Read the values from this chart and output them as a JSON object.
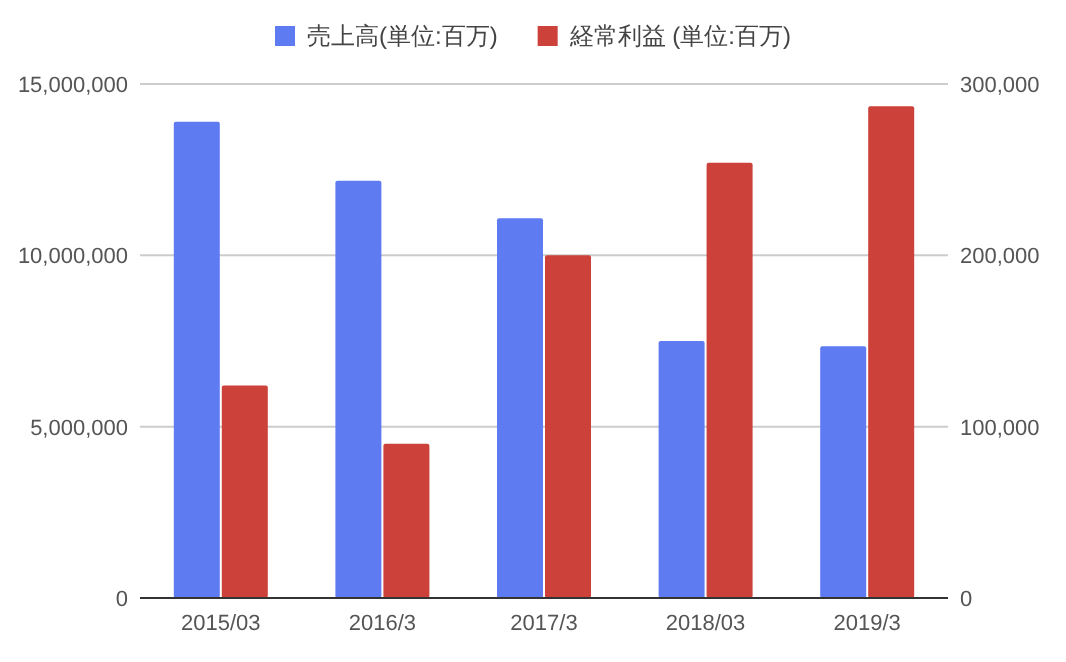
{
  "chart_data": {
    "type": "bar",
    "categories": [
      "2015/03",
      "2016/3",
      "2017/3",
      "2018/03",
      "2019/3"
    ],
    "series": [
      {
        "name": "売上高(単位:百万)",
        "color": "#5f7bf1",
        "values": [
          13900000,
          12180000,
          11080000,
          7500000,
          7350000
        ]
      },
      {
        "name": "経常利益 (単位:百万)",
        "color": "#cc4139",
        "axis": "y2",
        "values": [
          124000,
          90000,
          200000,
          254000,
          287000
        ]
      }
    ],
    "ylim": [
      0,
      15000000
    ],
    "yticks": [
      {
        "value": 0,
        "label": "0"
      },
      {
        "value": 5000000,
        "label": "5,000,000"
      },
      {
        "value": 10000000,
        "label": "10,000,000"
      },
      {
        "value": 15000000,
        "label": "15,000,000"
      }
    ],
    "y2lim": [
      0,
      300000
    ],
    "y2ticks": [
      {
        "value": 0,
        "label": "0"
      },
      {
        "value": 100000,
        "label": "100,000"
      },
      {
        "value": 200000,
        "label": "200,000"
      },
      {
        "value": 300000,
        "label": "300,000"
      }
    ],
    "grid": "y",
    "legend": "top"
  }
}
